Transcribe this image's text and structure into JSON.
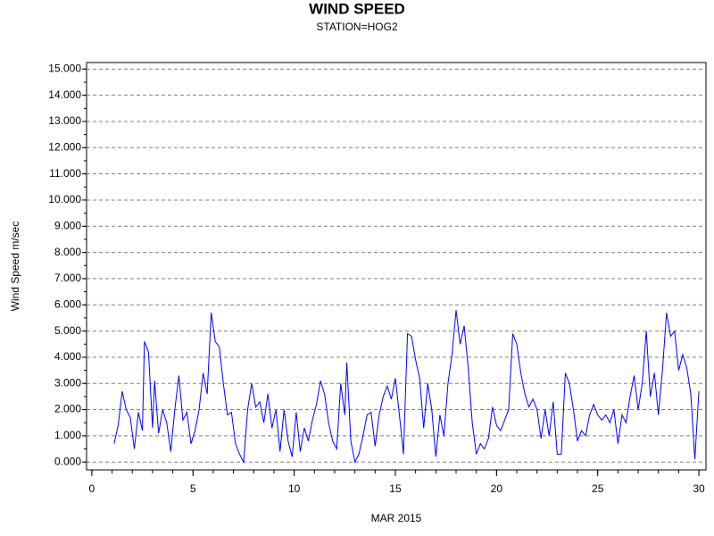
{
  "chart_data": {
    "type": "line",
    "title": "WIND SPEED",
    "subtitle": "STATION=HOG2",
    "xlabel": "MAR 2015",
    "ylabel": "Wind Speed m/sec",
    "color": "#0000ff",
    "grid": true,
    "xlim": [
      -0.26,
      30.35
    ],
    "ylim": [
      -0.3,
      15.25
    ],
    "xticks": [
      0,
      5,
      10,
      15,
      20,
      25,
      30
    ],
    "xminorticks": [
      0,
      1,
      2,
      3,
      4,
      5,
      6,
      7,
      8,
      9,
      10,
      11,
      12,
      13,
      14,
      15,
      16,
      17,
      18,
      19,
      20,
      21,
      22,
      23,
      24,
      25,
      26,
      27,
      28,
      29,
      30
    ],
    "yminorticks": [
      0,
      0.5,
      1,
      1.5,
      2,
      2.5,
      3,
      3.5,
      4,
      4.5,
      5,
      5.5,
      6,
      6.5,
      7,
      7.5,
      8,
      8.5,
      9,
      9.5,
      10,
      10.5,
      11,
      11.5,
      12,
      12.5,
      13,
      13.5,
      14,
      14.5,
      15
    ],
    "yticks": [
      {
        "value": 0,
        "label": "0.000"
      },
      {
        "value": 1,
        "label": "1.000"
      },
      {
        "value": 2,
        "label": "2.000"
      },
      {
        "value": 3,
        "label": "3.000"
      },
      {
        "value": 4,
        "label": "4.000"
      },
      {
        "value": 5,
        "label": "5.000"
      },
      {
        "value": 6,
        "label": "6.000"
      },
      {
        "value": 7,
        "label": "7.000"
      },
      {
        "value": 8,
        "label": "8.000"
      },
      {
        "value": 9,
        "label": "9.000"
      },
      {
        "value": 10,
        "label": "10.000"
      },
      {
        "value": 11,
        "label": "11.000"
      },
      {
        "value": 12,
        "label": "12.000"
      },
      {
        "value": 13,
        "label": "13.000"
      },
      {
        "value": 14,
        "label": "14.000"
      },
      {
        "value": 15,
        "label": "15.000"
      }
    ],
    "x": [
      1.1,
      1.3,
      1.5,
      1.7,
      1.9,
      2.1,
      2.3,
      2.5,
      2.6,
      2.8,
      3.0,
      3.1,
      3.3,
      3.5,
      3.7,
      3.9,
      4.1,
      4.3,
      4.5,
      4.7,
      4.9,
      5.1,
      5.3,
      5.5,
      5.7,
      5.9,
      6.1,
      6.3,
      6.5,
      6.7,
      6.9,
      7.1,
      7.3,
      7.5,
      7.7,
      7.9,
      8.1,
      8.3,
      8.5,
      8.7,
      8.9,
      9.1,
      9.3,
      9.5,
      9.7,
      9.9,
      10.1,
      10.3,
      10.5,
      10.7,
      10.9,
      11.1,
      11.3,
      11.5,
      11.7,
      11.9,
      12.1,
      12.3,
      12.5,
      12.6,
      12.8,
      13.0,
      13.2,
      13.4,
      13.6,
      13.8,
      14.0,
      14.2,
      14.4,
      14.6,
      14.8,
      15.0,
      15.2,
      15.4,
      15.6,
      15.8,
      16.0,
      16.2,
      16.4,
      16.6,
      16.8,
      17.0,
      17.2,
      17.4,
      17.6,
      17.8,
      18.0,
      18.2,
      18.4,
      18.6,
      18.8,
      19.0,
      19.2,
      19.4,
      19.6,
      19.8,
      20.0,
      20.2,
      20.4,
      20.6,
      20.8,
      21.0,
      21.2,
      21.4,
      21.6,
      21.8,
      22.0,
      22.2,
      22.4,
      22.6,
      22.8,
      23.0,
      23.2,
      23.4,
      23.6,
      23.8,
      24.0,
      24.2,
      24.4,
      24.6,
      24.8,
      25.0,
      25.2,
      25.4,
      25.6,
      25.8,
      26.0,
      26.2,
      26.4,
      26.6,
      26.8,
      27.0,
      27.2,
      27.4,
      27.6,
      27.8,
      28.0,
      28.2,
      28.4,
      28.6,
      28.8,
      29.0,
      29.2,
      29.4,
      29.6,
      29.8,
      30.0
    ],
    "values": [
      0.7,
      1.4,
      2.7,
      2.0,
      1.7,
      0.5,
      1.9,
      1.2,
      4.6,
      4.2,
      1.3,
      3.1,
      1.1,
      2.0,
      1.5,
      0.4,
      2.0,
      3.3,
      1.6,
      1.9,
      0.7,
      1.2,
      2.0,
      3.4,
      2.6,
      5.7,
      4.6,
      4.4,
      3.0,
      1.8,
      1.9,
      0.7,
      0.3,
      0.0,
      2.0,
      3.0,
      2.1,
      2.3,
      1.5,
      2.6,
      1.3,
      2.0,
      0.4,
      2.0,
      0.8,
      0.2,
      1.9,
      0.4,
      1.3,
      0.8,
      1.6,
      2.2,
      3.1,
      2.6,
      1.5,
      0.8,
      0.5,
      3.0,
      1.8,
      3.8,
      0.8,
      0.0,
      0.3,
      1.0,
      1.8,
      1.9,
      0.6,
      1.8,
      2.5,
      2.9,
      2.4,
      3.2,
      1.8,
      0.3,
      4.9,
      4.8,
      3.9,
      3.2,
      1.3,
      3.0,
      2.0,
      0.2,
      1.8,
      1.0,
      3.0,
      4.1,
      5.8,
      4.5,
      5.2,
      3.6,
      1.5,
      0.3,
      0.7,
      0.5,
      0.9,
      2.1,
      1.4,
      1.2,
      1.6,
      2.0,
      4.9,
      4.5,
      3.4,
      2.6,
      2.1,
      2.4,
      2.0,
      0.9,
      2.0,
      1.0,
      2.3,
      0.3,
      0.3,
      3.4,
      3.0,
      2.0,
      0.8,
      1.2,
      1.0,
      1.8,
      2.2,
      1.8,
      1.6,
      1.8,
      1.5,
      2.0,
      0.7,
      1.8,
      1.5,
      2.5,
      3.3,
      2.0,
      3.0,
      5.0,
      2.5,
      3.4,
      1.8,
      3.5,
      5.7,
      4.8,
      5.0,
      3.5,
      4.1,
      3.6,
      2.6,
      0.1,
      2.7
    ]
  }
}
